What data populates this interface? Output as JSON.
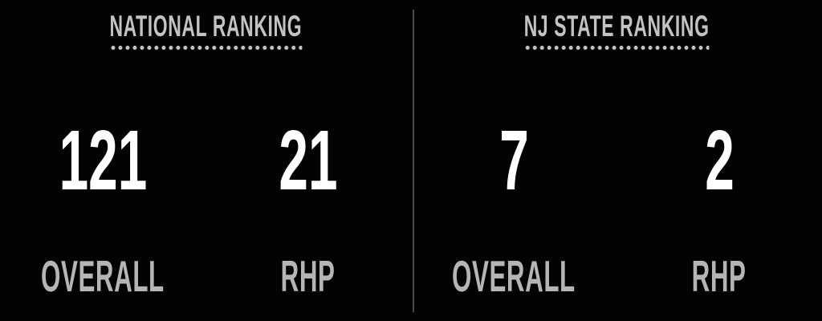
{
  "theme": {
    "background": "#030303",
    "title_color": "#c3c3c3",
    "label_color": "#b5b5b5",
    "number_color": "#ffffff",
    "divider_color": "#4c4c4c"
  },
  "panels": [
    {
      "title": "NATIONAL RANKING",
      "stats": [
        {
          "value": "121",
          "label": "OVERALL"
        },
        {
          "value": "21",
          "label": "RHP"
        }
      ]
    },
    {
      "title": "NJ STATE RANKING",
      "stats": [
        {
          "value": "7",
          "label": "OVERALL"
        },
        {
          "value": "2",
          "label": "RHP"
        }
      ]
    }
  ]
}
